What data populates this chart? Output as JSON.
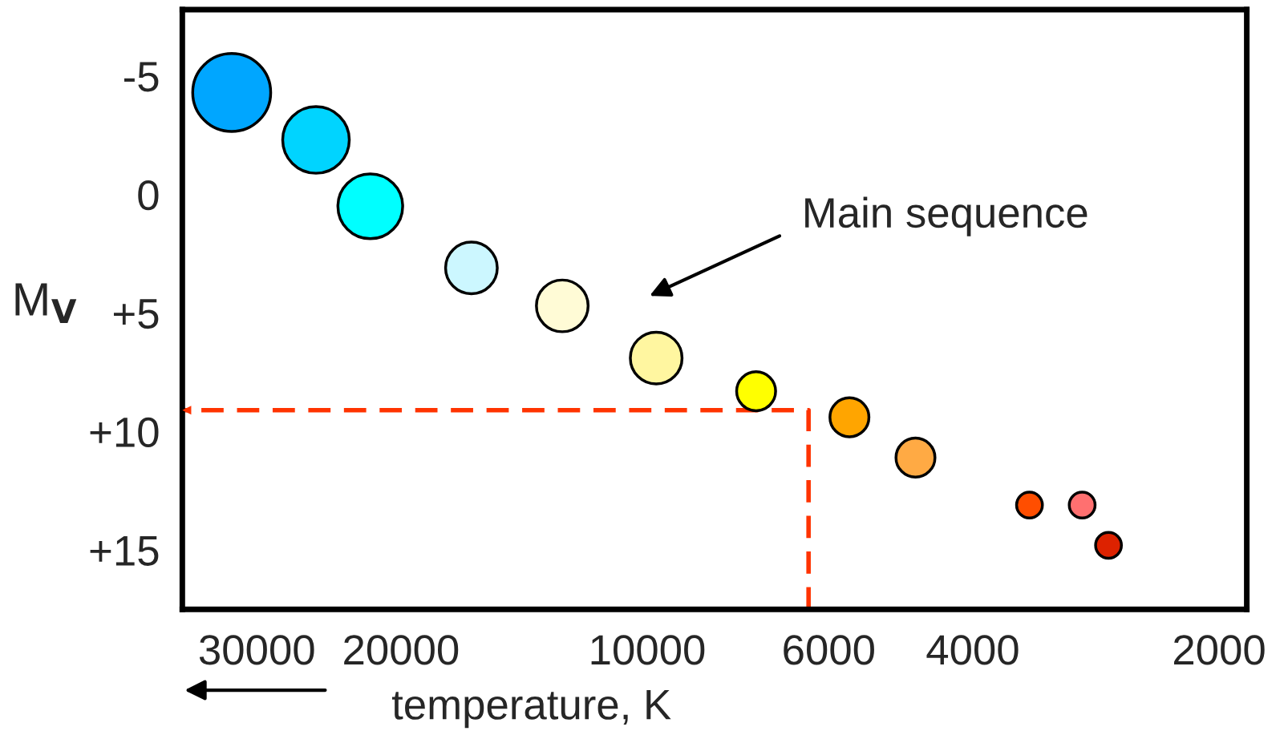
{
  "chart_data": {
    "type": "bubble",
    "xlabel": "temperature, K",
    "ylabel": "M$_{V}$",
    "log": "x",
    "grid": false,
    "xlim": [
      37000,
      1850
    ],
    "xticks": [
      30000,
      20000,
      10000,
      6000,
      4000,
      2000
    ],
    "ylim": [
      17.5,
      -7.8
    ],
    "yticks": [
      {
        "value": -5,
        "label": "-5"
      },
      {
        "value": 0,
        "label": "0"
      },
      {
        "value": 5,
        "label": "+5"
      },
      {
        "value": 10,
        "label": "+10"
      },
      {
        "value": 15,
        "label": "+15"
      }
    ],
    "series": [
      {
        "x": [
          32200,
          25400,
          21800,
          16400,
          12700,
          9750,
          7360,
          5660,
          4700,
          3410,
          2940,
          2730
        ],
        "values": [
          -4.3,
          -2.3,
          0.5,
          3.1,
          4.7,
          6.9,
          8.3,
          9.4,
          11.1,
          13.1,
          13.1,
          14.8
        ],
        "sizes": [
          1,
          0.73,
          0.69,
          0.44,
          0.44,
          0.44,
          0.25,
          0.25,
          0.25,
          0.11,
          0.11,
          0.11
        ],
        "colors": [
          "#00a6ff",
          "#00d4ff",
          "#00ffff",
          "#ccf7ff",
          "#fffbd6",
          "#fff6a0",
          "#ffff00",
          "#ffa500",
          "#ffaa44",
          "#ff4e00",
          "#ff7070",
          "#dd2200"
        ]
      },
      {
        "type": "line",
        "x": [
          6350,
          6350,
          37000
        ],
        "values": [
          17.5,
          9.1,
          9.1
        ],
        "color": "#ff3300",
        "line_style": "dashed"
      }
    ],
    "annotations": [
      "Main sequence"
    ]
  }
}
